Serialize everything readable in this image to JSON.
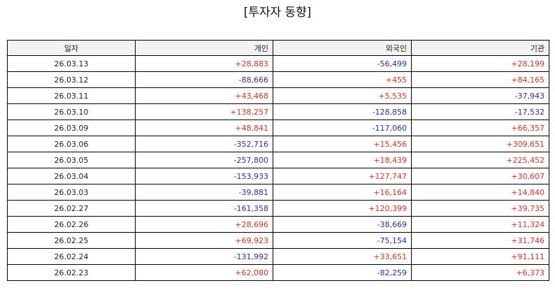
{
  "title": "[투자자 동향]",
  "columns": {
    "date": "일자",
    "individual": "개인",
    "foreign": "외국인",
    "institution": "기관"
  },
  "colors": {
    "positive": "#d93025",
    "negative": "#2a2ab0"
  },
  "rows": [
    {
      "date": "26.03.13",
      "individual": "+28,883",
      "foreign": "-56,499",
      "institution": "+28,199"
    },
    {
      "date": "26.03.12",
      "individual": "-88,666",
      "foreign": "+455",
      "institution": "+84,165"
    },
    {
      "date": "26.03.11",
      "individual": "+43,468",
      "foreign": "+5,535",
      "institution": "-37,943"
    },
    {
      "date": "26.03.10",
      "individual": "+138,257",
      "foreign": "-128,858",
      "institution": "-17,532"
    },
    {
      "date": "26.03.09",
      "individual": "+48,841",
      "foreign": "-117,060",
      "institution": "+66,357"
    },
    {
      "date": "26.03.06",
      "individual": "-352,716",
      "foreign": "+15,456",
      "institution": "+309,651"
    },
    {
      "date": "26.03.05",
      "individual": "-257,800",
      "foreign": "+18,439",
      "institution": "+225,452"
    },
    {
      "date": "26.03.04",
      "individual": "-153,933",
      "foreign": "+127,747",
      "institution": "+30,607"
    },
    {
      "date": "26.03.03",
      "individual": "-39,881",
      "foreign": "+16,164",
      "institution": "+14,840"
    },
    {
      "date": "26.02.27",
      "individual": "-161,358",
      "foreign": "+120,399",
      "institution": "+39,735"
    },
    {
      "date": "26.02.26",
      "individual": "+28,696",
      "foreign": "-38,669",
      "institution": "+11,324"
    },
    {
      "date": "26.02.25",
      "individual": "+69,923",
      "foreign": "-75,154",
      "institution": "+31,746"
    },
    {
      "date": "26.02.24",
      "individual": "-131,992",
      "foreign": "+33,651",
      "institution": "+91,111"
    },
    {
      "date": "26.02.23",
      "individual": "+62,080",
      "foreign": "-82,259",
      "institution": "+6,373"
    }
  ]
}
